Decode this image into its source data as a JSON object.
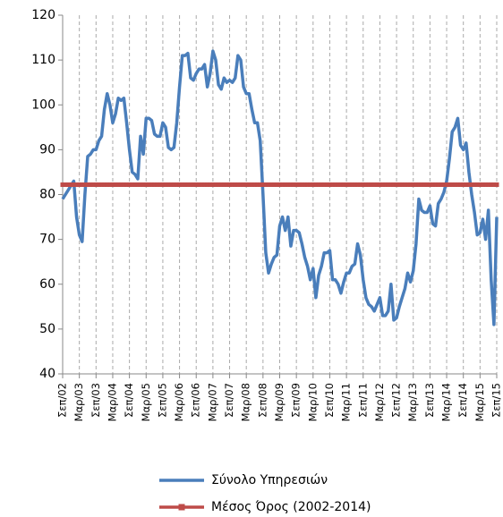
{
  "chart_data": {
    "type": "line",
    "categories": [
      "Σεπ/02",
      null,
      null,
      null,
      null,
      null,
      "Μαρ/03",
      null,
      null,
      null,
      null,
      null,
      "Σεπ/03",
      null,
      null,
      null,
      null,
      null,
      "Μαρ/04",
      null,
      null,
      null,
      null,
      null,
      "Σεπ/04",
      null,
      null,
      null,
      null,
      null,
      "Μαρ/05",
      null,
      null,
      null,
      null,
      null,
      "Σεπ/05",
      null,
      null,
      null,
      null,
      null,
      "Μαρ/06",
      null,
      null,
      null,
      null,
      null,
      "Σεπ/06",
      null,
      null,
      null,
      null,
      null,
      "Μαρ/07",
      null,
      null,
      null,
      null,
      null,
      "Σεπ/07",
      null,
      null,
      null,
      null,
      null,
      "Μαρ/08",
      null,
      null,
      null,
      null,
      null,
      "Σεπ/08",
      null,
      null,
      null,
      null,
      null,
      "Μαρ/09",
      null,
      null,
      null,
      null,
      null,
      "Σεπ/09",
      null,
      null,
      null,
      null,
      null,
      "Μαρ/10",
      null,
      null,
      null,
      null,
      null,
      "Σεπ/10",
      null,
      null,
      null,
      null,
      null,
      "Μαρ/11",
      null,
      null,
      null,
      null,
      null,
      "Σεπ/11",
      null,
      null,
      null,
      null,
      null,
      "Μαρ/12",
      null,
      null,
      null,
      null,
      null,
      "Σεπ/12",
      null,
      null,
      null,
      null,
      null,
      "Μαρ/13",
      null,
      null,
      null,
      null,
      null,
      "Σεπ/13",
      null,
      null,
      null,
      null,
      null,
      "Μαρ/14",
      null,
      null,
      null,
      null,
      null,
      "Σεπ/14",
      null,
      null,
      null,
      null,
      null,
      "Μαρ/15",
      null,
      null,
      null,
      null,
      null,
      "Σεπ/15"
    ],
    "series": [
      {
        "name": "Σύνολο Υπηρεσιών",
        "color": "#4a7ebb",
        "values": [
          79,
          80,
          81,
          82,
          83,
          75,
          71,
          69.5,
          80,
          88.5,
          89,
          90,
          90,
          92,
          93,
          99,
          102.5,
          100,
          96,
          98,
          101.5,
          101,
          101.5,
          96,
          90,
          85,
          84.5,
          83.5,
          93,
          89,
          97,
          97,
          96.5,
          93.5,
          93,
          93,
          96,
          95,
          90.5,
          90,
          90.5,
          96,
          104,
          111,
          111,
          111.5,
          106,
          105.5,
          107,
          108,
          108,
          109,
          104,
          107,
          112,
          110,
          104.5,
          103.5,
          106,
          105,
          105.5,
          105,
          106,
          111,
          110,
          104,
          102.5,
          102.5,
          99,
          96,
          96,
          92,
          80,
          67,
          62.5,
          64.5,
          66,
          66.5,
          73,
          75,
          72,
          75,
          68.5,
          72,
          72,
          71.5,
          69,
          66,
          64,
          61,
          63.5,
          57,
          62,
          64,
          67,
          67,
          67.5,
          61,
          61,
          60,
          58,
          60.5,
          62.5,
          62.5,
          64,
          64.5,
          69,
          66.5,
          61,
          57,
          55.5,
          55,
          54,
          55.5,
          57,
          53,
          53,
          54,
          60,
          52,
          52.5,
          55,
          57,
          59,
          62.5,
          60.5,
          63,
          69,
          79,
          76.5,
          76,
          76,
          77.5,
          73.5,
          73,
          78,
          79,
          80.5,
          83,
          88,
          94,
          95,
          97,
          91,
          90,
          91.5,
          85,
          80,
          76,
          71,
          71.5,
          74.5,
          70,
          76.5,
          61,
          51,
          75
        ]
      },
      {
        "name": "Μέσος Όρος (2002-2014)",
        "color": "#be4b48",
        "values": [
          82.2,
          82.2,
          82.2,
          82.2,
          82.2,
          82.2,
          82.2,
          82.2,
          82.2,
          82.2,
          82.2,
          82.2,
          82.2,
          82.2,
          82.2,
          82.2,
          82.2,
          82.2,
          82.2,
          82.2,
          82.2,
          82.2,
          82.2,
          82.2,
          82.2,
          82.2,
          82.2,
          82.2,
          82.2,
          82.2,
          82.2,
          82.2,
          82.2,
          82.2,
          82.2,
          82.2,
          82.2,
          82.2,
          82.2,
          82.2,
          82.2,
          82.2,
          82.2,
          82.2,
          82.2,
          82.2,
          82.2,
          82.2,
          82.2,
          82.2,
          82.2,
          82.2,
          82.2,
          82.2,
          82.2,
          82.2,
          82.2,
          82.2,
          82.2,
          82.2,
          82.2,
          82.2,
          82.2,
          82.2,
          82.2,
          82.2,
          82.2,
          82.2,
          82.2,
          82.2,
          82.2,
          82.2,
          82.2,
          82.2,
          82.2,
          82.2,
          82.2,
          82.2,
          82.2,
          82.2,
          82.2,
          82.2,
          82.2,
          82.2,
          82.2,
          82.2,
          82.2,
          82.2,
          82.2,
          82.2,
          82.2,
          82.2,
          82.2,
          82.2,
          82.2,
          82.2,
          82.2,
          82.2,
          82.2,
          82.2,
          82.2,
          82.2,
          82.2,
          82.2,
          82.2,
          82.2,
          82.2,
          82.2,
          82.2,
          82.2,
          82.2,
          82.2,
          82.2,
          82.2,
          82.2,
          82.2,
          82.2,
          82.2,
          82.2,
          82.2,
          82.2,
          82.2,
          82.2,
          82.2,
          82.2,
          82.2,
          82.2,
          82.2,
          82.2,
          82.2,
          82.2,
          82.2,
          82.2,
          82.2,
          82.2,
          82.2,
          82.2,
          82.2,
          82.2,
          82.2,
          82.2,
          82.2,
          82.2,
          82.2,
          82.2,
          82.2,
          82.2,
          82.2,
          82.2,
          82.2,
          82.2,
          82.2,
          82.2,
          82.2,
          82.2,
          82.2,
          82.2
        ]
      }
    ],
    "ylim": [
      40,
      120
    ],
    "yticks": [
      40,
      50,
      60,
      70,
      80,
      90,
      100,
      110,
      120
    ],
    "grid": true,
    "legend": "bottom"
  }
}
